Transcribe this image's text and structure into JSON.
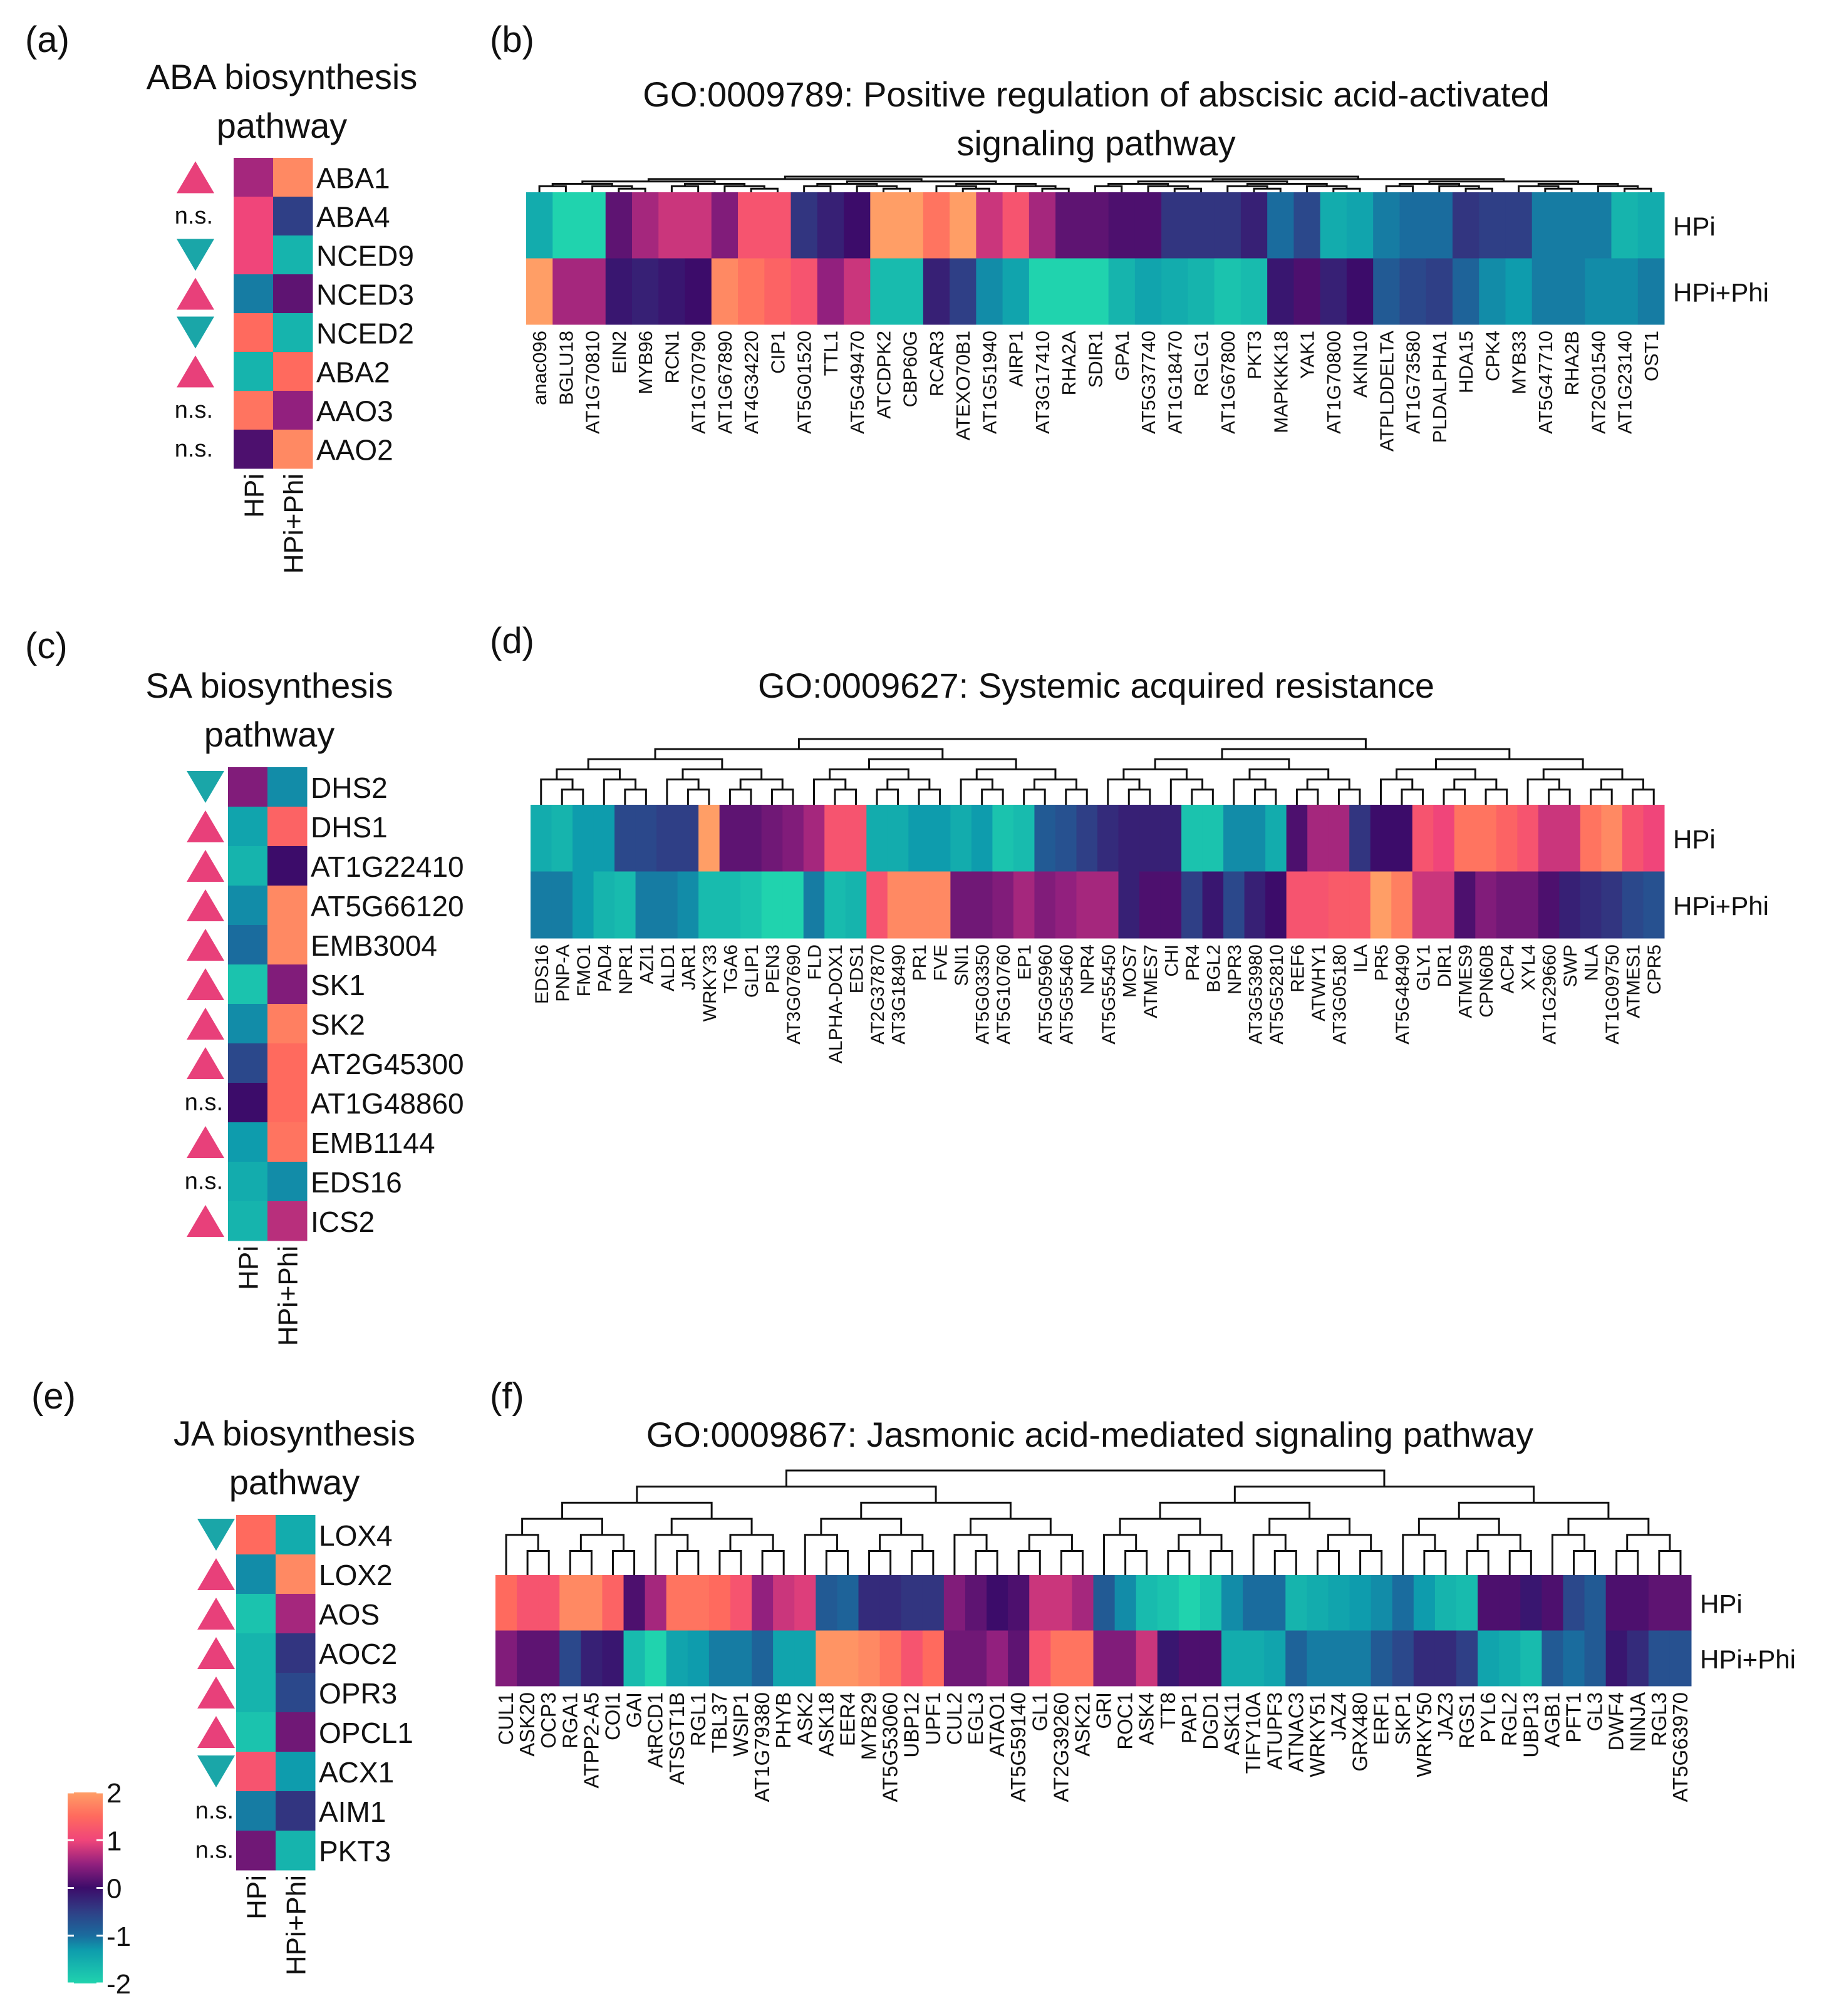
{
  "palette": {
    "-2": "#20D3AE",
    "-1.3": "#0E9CAD",
    "-1": "#1A6C9E",
    "-0.5": "#2F3F86",
    "0": "#3C0C6A",
    "0.5": "#92207E",
    "1": "#F0457A",
    "1.5": "#FF6A5E",
    "2": "#FF9E66"
  },
  "marker_colors": {
    "up": "#E8407A",
    "down": "#1AA6A8"
  },
  "ns_label": "n.s.",
  "colorbar": {
    "min": -2,
    "max": 2,
    "ticks": [
      "2",
      "1",
      "0",
      "-1",
      "-2"
    ]
  },
  "chart_data": [
    {
      "type": "heatmap",
      "panel": "(a)",
      "title_lines": [
        "ABA biosynthesis",
        "pathway"
      ],
      "conditions": [
        "HPi",
        "HPi+Phi"
      ],
      "rows": [
        {
          "gene": "ABA1",
          "marker": "up",
          "values": [
            0.6,
            1.8
          ]
        },
        {
          "gene": "ABA4",
          "marker": "ns",
          "values": [
            1.0,
            -0.5
          ]
        },
        {
          "gene": "NCED9",
          "marker": "down",
          "values": [
            1.0,
            -1.6
          ]
        },
        {
          "gene": "NCED3",
          "marker": "up",
          "values": [
            -1.1,
            0.2
          ]
        },
        {
          "gene": "NCED2",
          "marker": "down",
          "values": [
            1.5,
            -1.6
          ]
        },
        {
          "gene": "ABA2",
          "marker": "up",
          "values": [
            -1.6,
            1.5
          ]
        },
        {
          "gene": "AAO3",
          "marker": "ns",
          "values": [
            1.6,
            0.5
          ]
        },
        {
          "gene": "AAO2",
          "marker": "ns",
          "values": [
            0.1,
            1.8
          ]
        }
      ]
    },
    {
      "type": "heatmap",
      "panel": "(b)",
      "title_lines": [
        "GO:0009789: Positive regulation of abscisic acid-activated",
        "signaling pathway"
      ],
      "conditions": [
        "HPi",
        "HPi+Phi"
      ],
      "columns": [
        "anac096",
        "BGLU18",
        "AT1G70810",
        "EIN2",
        "MYB96",
        "RCN1",
        "AT1G70790",
        "AT1G67890",
        "AT4G34220",
        "CIP1",
        "AT5G01520",
        "TTL1",
        "AT5G49470",
        "ATCDPK2",
        "CBP60G",
        "RCAR3",
        "ATEXO70B1",
        "AT1G51940",
        "AIRP1",
        "AT3G17410",
        "RHA2A",
        "SDIR1",
        "GPA1",
        "AT5G37740",
        "AT1G18470",
        "RGLG1",
        "AT1G67800",
        "PKT3",
        "MAPKKK18",
        "YAK1",
        "AT1G70800",
        "AKIN10",
        "ATPLDDELTA",
        "AT1G73580",
        "PLDALPHA1",
        "HDA15",
        "CPK4",
        "MYB33",
        "AT5G47710",
        "RHA2B",
        "AT2G01540",
        "AT1G23140",
        "OST1"
      ],
      "values": [
        [
          -1.5,
          -2,
          -2,
          0.2,
          0.6,
          0.8,
          0.8,
          0.4,
          1.2,
          1.2,
          -0.4,
          -0.2,
          0,
          2,
          2,
          1.6,
          2,
          0.8,
          1.2,
          0.6,
          0.2,
          0.2,
          0.1,
          0.1,
          -0.4,
          -0.4,
          -0.4,
          -0.2,
          -1,
          -0.6,
          -1.5,
          -1.4,
          -1.1,
          -1,
          -1,
          -0.4,
          -0.5,
          -0.5,
          -1.1,
          -1.1,
          -1.1,
          -1.6,
          -1.5
        ],
        [
          2,
          0.6,
          0.6,
          -0.1,
          -0.2,
          -0.1,
          0,
          1.8,
          1.6,
          1.4,
          1.2,
          0.5,
          0.8,
          -1.7,
          -1.7,
          -0.2,
          -0.5,
          -1.2,
          -1.4,
          -2,
          -2,
          -2,
          -1.6,
          -1.4,
          -1.5,
          -1.6,
          -1.8,
          -1.7,
          -0.1,
          0.1,
          -0.2,
          0,
          -0.8,
          -0.6,
          -0.5,
          -0.9,
          -1.2,
          -1.3,
          -1.1,
          -1.1,
          -1.2,
          -1.2,
          -1.1
        ]
      ]
    },
    {
      "type": "heatmap",
      "panel": "(c)",
      "title_lines": [
        "SA biosynthesis",
        "pathway"
      ],
      "conditions": [
        "HPi",
        "HPi+Phi"
      ],
      "rows": [
        {
          "gene": "DHS2",
          "marker": "down",
          "values": [
            0.4,
            -1.2
          ]
        },
        {
          "gene": "DHS1",
          "marker": "up",
          "values": [
            -1.4,
            1.4
          ]
        },
        {
          "gene": "AT1G22410",
          "marker": "up",
          "values": [
            -1.6,
            0
          ]
        },
        {
          "gene": "AT5G66120",
          "marker": "up",
          "values": [
            -1.2,
            1.8
          ]
        },
        {
          "gene": "EMB3004",
          "marker": "up",
          "values": [
            -1.0,
            1.8
          ]
        },
        {
          "gene": "SK1",
          "marker": "up",
          "values": [
            -1.8,
            0.4
          ]
        },
        {
          "gene": "SK2",
          "marker": "up",
          "values": [
            -1.2,
            1.7
          ]
        },
        {
          "gene": "AT2G45300",
          "marker": "up",
          "values": [
            -0.6,
            1.5
          ]
        },
        {
          "gene": "AT1G48860",
          "marker": "ns",
          "values": [
            0,
            1.5
          ]
        },
        {
          "gene": "EMB1144",
          "marker": "up",
          "values": [
            -1.3,
            1.6
          ]
        },
        {
          "gene": "EDS16",
          "marker": "ns",
          "values": [
            -1.5,
            -1.2
          ]
        },
        {
          "gene": "ICS2",
          "marker": "up",
          "values": [
            -1.6,
            0.7
          ]
        }
      ]
    },
    {
      "type": "heatmap",
      "panel": "(d)",
      "title_lines": [
        "GO:0009627: Systemic acquired resistance"
      ],
      "conditions": [
        "HPi",
        "HPi+Phi"
      ],
      "columns": [
        "EDS16",
        "PNP-A",
        "FMO1",
        "PAD4",
        "NPR1",
        "AZI1",
        "ALD1",
        "JAR1",
        "WRKY33",
        "TGA6",
        "GLIP1",
        "PEN3",
        "AT3G07690",
        "FLD",
        "ALPHA-DOX1",
        "EDS1",
        "AT2G37870",
        "AT3G18490",
        "PR1",
        "FVE",
        "SNI1",
        "AT5G03350",
        "AT5G10760",
        "EP1",
        "AT5G05960",
        "AT5G55460",
        "NPR4",
        "AT5G55450",
        "MOS7",
        "ATMES7",
        "CHI",
        "PR4",
        "BGL2",
        "NPR3",
        "AT3G53980",
        "AT5G52810",
        "REF6",
        "ATWHY1",
        "AT3G05180",
        "ILA",
        "PR5",
        "AT5G48490",
        "GLY1",
        "DIR1",
        "ATMES9",
        "CPN60B",
        "ACP4",
        "XYL4",
        "AT1G29660",
        "SWP",
        "NLA",
        "AT1G09750",
        "ATMES1",
        "CPR5"
      ],
      "values": [
        [
          -1.5,
          -1.6,
          -1.3,
          -1.3,
          -0.6,
          -0.6,
          -0.5,
          -0.5,
          2,
          0.2,
          0.2,
          0.3,
          0.4,
          0.6,
          1.2,
          1.2,
          -1.5,
          -1.5,
          -1.3,
          -1.3,
          -1.5,
          -1.3,
          -1.8,
          -1.7,
          -0.8,
          -0.7,
          -0.5,
          -0.3,
          -0.2,
          -0.2,
          -0.2,
          -1.8,
          -1.8,
          -1.2,
          -1.2,
          -1.5,
          0.1,
          0.6,
          0.6,
          -0.4,
          0,
          0,
          1.2,
          1.0,
          1.6,
          1.6,
          1.4,
          1.2,
          0.8,
          0.8,
          1.6,
          1.8,
          1.2,
          1.0
        ],
        [
          -1.1,
          -1.1,
          -1.3,
          -1.6,
          -1.7,
          -1.1,
          -1.1,
          -1.2,
          -1.7,
          -1.7,
          -1.8,
          -2,
          -2,
          -1.1,
          -1.7,
          -1.6,
          1.2,
          1.8,
          1.8,
          1.8,
          0.3,
          0.3,
          0.4,
          0.6,
          0.4,
          0.5,
          0.6,
          0.6,
          -0.2,
          0.1,
          0.1,
          -0.5,
          -0.1,
          -0.6,
          -0.2,
          0,
          1.2,
          1.2,
          1.3,
          1.3,
          2,
          1.7,
          0.8,
          0.8,
          0.1,
          0.4,
          0.3,
          0.3,
          0.1,
          -0.2,
          -0.3,
          -0.4,
          -0.6,
          -0.7
        ]
      ]
    },
    {
      "type": "heatmap",
      "panel": "(e)",
      "title_lines": [
        "JA biosynthesis",
        "pathway"
      ],
      "conditions": [
        "HPi",
        "HPi+Phi"
      ],
      "rows": [
        {
          "gene": "LOX4",
          "marker": "down",
          "values": [
            1.5,
            -1.5
          ]
        },
        {
          "gene": "LOX2",
          "marker": "up",
          "values": [
            -1.2,
            1.8
          ]
        },
        {
          "gene": "AOS",
          "marker": "up",
          "values": [
            -1.8,
            0.6
          ]
        },
        {
          "gene": "AOC2",
          "marker": "up",
          "values": [
            -1.6,
            -0.4
          ]
        },
        {
          "gene": "OPR3",
          "marker": "up",
          "values": [
            -1.6,
            -0.6
          ]
        },
        {
          "gene": "OPCL1",
          "marker": "up",
          "values": [
            -1.8,
            0.3
          ]
        },
        {
          "gene": "ACX1",
          "marker": "down",
          "values": [
            1.2,
            -1.3
          ]
        },
        {
          "gene": "AIM1",
          "marker": "ns",
          "values": [
            -1.1,
            -0.4
          ]
        },
        {
          "gene": "PKT3",
          "marker": "ns",
          "values": [
            0.3,
            -1.6
          ]
        }
      ]
    },
    {
      "type": "heatmap",
      "panel": "(f)",
      "title_lines": [
        "GO:0009867: Jasmonic acid-mediated signaling pathway"
      ],
      "conditions": [
        "HPi",
        "HPi+Phi"
      ],
      "columns": [
        "CUL1",
        "ASK20",
        "OCP3",
        "RGA1",
        "ATPP2-A5",
        "COI1",
        "GAI",
        "AtRCD1",
        "ATSGT1B",
        "RGL1",
        "TBL37",
        "WSIP1",
        "AT1G79380",
        "PHYB",
        "ASK2",
        "ASK18",
        "EER4",
        "MYB29",
        "AT5G53060",
        "UBP12",
        "UPF1",
        "CUL2",
        "EGL3",
        "ATAO1",
        "AT5G59140",
        "GL1",
        "AT2G39260",
        "ASK21",
        "GRI",
        "ROC1",
        "ASK4",
        "TT8",
        "PAP1",
        "DGD1",
        "ASK11",
        "TIFY10A",
        "ATUPF3",
        "ATNAC3",
        "WRKY51",
        "JAZ4",
        "GRX480",
        "ERF1",
        "SKP1",
        "WRKY50",
        "JAZ3",
        "RGS1",
        "PYL6",
        "RGL2",
        "UBP13",
        "AGB1",
        "PFT1",
        "GL3",
        "DWF4",
        "NINJA",
        "RGL3",
        "AT5G63970"
      ],
      "values": [
        [
          1.5,
          1.2,
          1.2,
          1.8,
          1.8,
          1.4,
          0.1,
          0.6,
          1.6,
          1.6,
          1.5,
          1.2,
          0.5,
          0.8,
          0.9,
          -0.8,
          -0.9,
          -0.3,
          -0.3,
          -0.4,
          -0.4,
          0.4,
          0.2,
          0,
          0.1,
          0.8,
          0.8,
          0.6,
          -0.8,
          -1.2,
          -1.7,
          -1.8,
          -2,
          -1.8,
          -1.2,
          -1.0,
          -1.0,
          -1.6,
          -1.5,
          -1.4,
          -1.3,
          -1.2,
          -1.0,
          -1.3,
          -1.6,
          -1.7,
          0.1,
          0.1,
          -0.1,
          0.1,
          -0.6,
          -0.8,
          0.1,
          0.1,
          0.2,
          0.2
        ],
        [
          0.4,
          0.2,
          0.2,
          -0.6,
          -0.2,
          -0.1,
          -1.7,
          -2,
          -1.4,
          -1.3,
          -1.1,
          -1.1,
          -0.9,
          -1.4,
          -1.4,
          1.9,
          1.9,
          1.8,
          1.6,
          1.2,
          1.5,
          0.3,
          0.3,
          0.5,
          0.2,
          1.2,
          1.6,
          1.6,
          0.4,
          0.4,
          0.8,
          -0.1,
          0.1,
          0.1,
          -1.5,
          -1.5,
          -1.4,
          -0.9,
          -1.1,
          -1.1,
          -1.1,
          -0.8,
          -0.6,
          -0.3,
          -0.3,
          -0.5,
          -1.4,
          -1.5,
          -1.7,
          -0.8,
          -1.0,
          -0.8,
          -0.1,
          -0.3,
          -0.7,
          -0.7
        ]
      ]
    }
  ]
}
